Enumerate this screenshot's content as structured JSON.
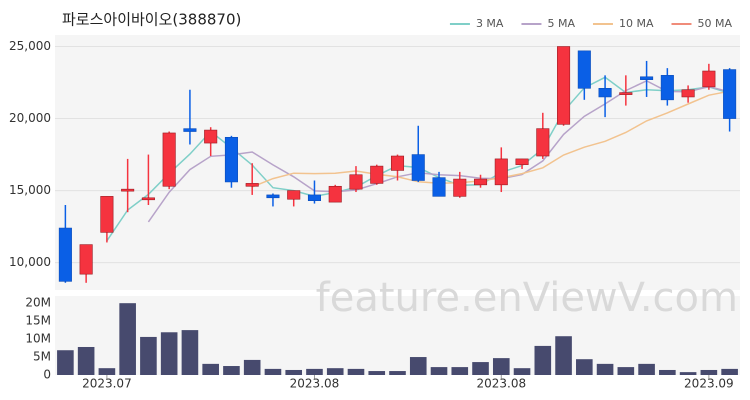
{
  "chart_data": [
    {
      "type": "candlestick",
      "title": "파로스아이바이오(388870)",
      "watermark": "feature.enViewV.com",
      "open": [
        12400,
        9200,
        12100,
        15000,
        14400,
        15300,
        19300,
        18300,
        18700,
        15300,
        14700,
        14400,
        14700,
        14200,
        15100,
        15500,
        16400,
        17500,
        15900,
        14600,
        15400,
        15400,
        16800,
        17400,
        19600,
        24700,
        22100,
        21700,
        22900,
        23000,
        21500,
        22200,
        23400
      ],
      "high": [
        14000,
        11250,
        14600,
        17200,
        17500,
        19100,
        22000,
        19400,
        18800,
        16900,
        14800,
        15000,
        15700,
        15400,
        16700,
        16800,
        17500,
        19500,
        16300,
        16300,
        16100,
        18000,
        17200,
        20400,
        25000,
        24700,
        23000,
        23000,
        24000,
        23500,
        22300,
        23800,
        23500
      ],
      "low": [
        8600,
        8600,
        11400,
        13500,
        14000,
        15100,
        18200,
        17400,
        15200,
        14700,
        13900,
        13900,
        14100,
        14200,
        14900,
        15400,
        15700,
        15600,
        14600,
        14500,
        15200,
        14900,
        16500,
        17200,
        19500,
        21300,
        20100,
        20900,
        21500,
        20900,
        21100,
        22000,
        19100
      ],
      "close": [
        8700,
        11250,
        14600,
        15100,
        14500,
        19000,
        19100,
        19200,
        15600,
        15500,
        14500,
        15000,
        14300,
        15300,
        16100,
        16700,
        17400,
        15700,
        14600,
        15800,
        15800,
        17200,
        17200,
        19300,
        25000,
        22100,
        21500,
        21800,
        22700,
        21300,
        22000,
        23300,
        20000
      ],
      "up_color": "#f5333f",
      "down_color": "#0a5fe6",
      "series": [
        {
          "name": "3 MA",
          "color": "#7fcfc8",
          "values": [
            null,
            null,
            11517,
            13650,
            14733,
            16200,
            17533,
            19100,
            17967,
            16767,
            15200,
            15000,
            14600,
            14867,
            15233,
            16033,
            16733,
            16600,
            15900,
            15367,
            15400,
            16267,
            16733,
            17900,
            20500,
            22133,
            22867,
            21800,
            22000,
            21933,
            22000,
            22200,
            21767
          ]
        },
        {
          "name": "5 MA",
          "color": "#b7a3c9",
          "values": [
            null,
            null,
            null,
            null,
            12830,
            14890,
            16460,
            17380,
            17480,
            17680,
            16780,
            15960,
            14980,
            14920,
            15040,
            15480,
            15960,
            16240,
            16100,
            16040,
            15860,
            15820,
            16120,
            17060,
            18900,
            20160,
            21020,
            21940,
            22620,
            21880,
            21860,
            22220,
            21860
          ]
        },
        {
          "name": "10 MA",
          "color": "#f2c38f",
          "values": [
            null,
            null,
            null,
            null,
            null,
            null,
            null,
            null,
            null,
            15255,
            15835,
            16210,
            16180,
            16200,
            16360,
            16130,
            15960,
            15610,
            15510,
            15540,
            15670,
            15890,
            16180,
            16580,
            17470,
            18010,
            18420,
            19030,
            19840,
            20390,
            21010,
            21620,
            21900
          ]
        },
        {
          "name": "50 MA",
          "color": "#f08c7a",
          "values": [
            null,
            null,
            null,
            null,
            null,
            null,
            null,
            null,
            null,
            null,
            null,
            null,
            null,
            null,
            null,
            null,
            null,
            null,
            null,
            null,
            null,
            null,
            null,
            null,
            null,
            null,
            null,
            null,
            null,
            null,
            null,
            null,
            null
          ]
        }
      ],
      "ylim": [
        8100,
        25800
      ],
      "yticks": [
        {
          "value": 10000,
          "label": "10,000"
        },
        {
          "value": 15000,
          "label": "15,000"
        },
        {
          "value": 20000,
          "label": "20,000"
        },
        {
          "value": 25000,
          "label": "25,000"
        }
      ],
      "grid": true,
      "legend": "top-right"
    },
    {
      "type": "bar",
      "categories": [
        null,
        null,
        "2023.07",
        null,
        null,
        null,
        null,
        null,
        null,
        null,
        null,
        null,
        "2023.08",
        null,
        null,
        null,
        null,
        null,
        null,
        null,
        null,
        "2023.08",
        null,
        null,
        null,
        null,
        null,
        null,
        null,
        null,
        null,
        "2023.09",
        null
      ],
      "values": [
        6900000,
        7800000,
        1900000,
        20000000,
        10600000,
        11900000,
        12500000,
        3100000,
        2500000,
        4200000,
        1700000,
        1400000,
        1700000,
        1900000,
        1700000,
        1100000,
        1100000,
        5000000,
        2200000,
        2200000,
        3600000,
        4700000,
        1900000,
        8100000,
        10800000,
        4400000,
        3100000,
        2200000,
        3100000,
        1400000,
        800000,
        1400000,
        1700000
      ],
      "color": "#474a6e",
      "ylim": [
        0,
        22000000
      ],
      "yticks": [
        0,
        {
          "value": 5000000,
          "label": "5M"
        },
        {
          "value": 10000000,
          "label": "10M"
        },
        {
          "value": 15000000,
          "label": "15M"
        },
        {
          "value": 20000000,
          "label": "20M"
        }
      ]
    }
  ]
}
